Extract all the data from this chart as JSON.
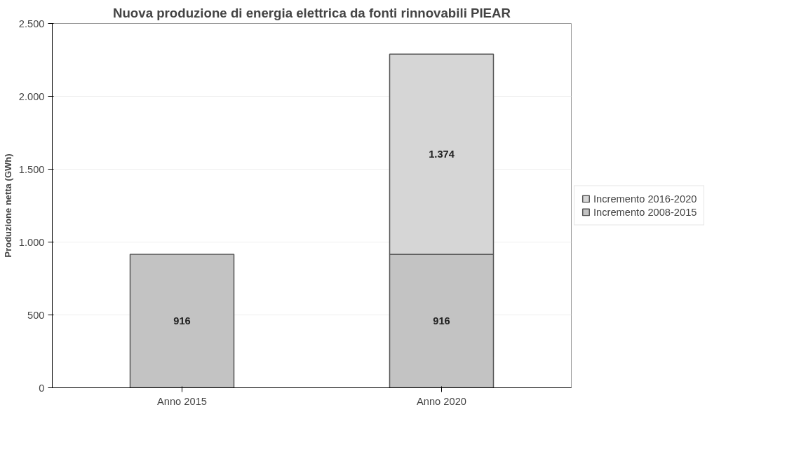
{
  "chart_data": {
    "type": "bar",
    "title": "Nuova produzione di energia elettrica da fonti rinnovabili PIEAR",
    "ylabel": "Produzione netta (GWh)",
    "categories": [
      "Anno 2015",
      "Anno 2020"
    ],
    "stacked": true,
    "series": [
      {
        "name": "Incremento 2008-2015",
        "color": "#c3c3c3",
        "values": [
          916,
          916
        ],
        "value_labels": [
          "916",
          "916"
        ]
      },
      {
        "name": "Incremento 2016-2020",
        "color": "#d6d6d6",
        "values": [
          null,
          1374
        ],
        "value_labels": [
          null,
          "1.374"
        ]
      }
    ],
    "ylim": [
      0,
      2500
    ],
    "yticks": [
      0,
      {
        "value": 500,
        "label": "500"
      },
      {
        "value": 1000,
        "label": "1.000"
      },
      {
        "value": 1500,
        "label": "1.500"
      },
      {
        "value": 2000,
        "label": "2.000"
      },
      {
        "value": 2500,
        "label": "2.500"
      }
    ],
    "grid": "y",
    "legend": "right"
  }
}
